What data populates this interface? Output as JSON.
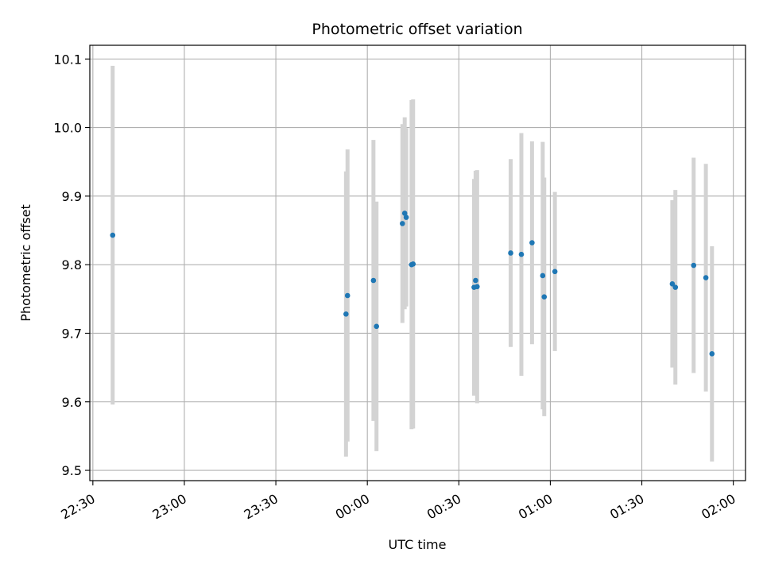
{
  "chart_data": {
    "type": "scatter",
    "title": "Photometric offset variation",
    "xlabel": "UTC time",
    "ylabel": "Photometric offset",
    "x_unit": "UTC time (HH:MM), day boundary at 00:00",
    "x_ticks": [
      "22:30",
      "23:00",
      "23:30",
      "00:00",
      "00:30",
      "01:00",
      "01:30",
      "02:00"
    ],
    "y_ticks": [
      "9.5",
      "9.6",
      "9.7",
      "9.8",
      "9.9",
      "10.0",
      "10.1"
    ],
    "xlim": [
      "22:29",
      "02:04"
    ],
    "ylim": [
      9.485,
      10.12
    ],
    "grid": true,
    "colors": {
      "point": "#1f77b4",
      "errorbar": "#d3d3d3",
      "grid": "#b0b0b0"
    },
    "points": [
      {
        "time": "22:36:30",
        "y": 9.843,
        "err": 0.247
      },
      {
        "time": "23:53:00",
        "y": 9.728,
        "err": 0.208
      },
      {
        "time": "23:53:30",
        "y": 9.755,
        "err": 0.213
      },
      {
        "time": "00:02:00",
        "y": 9.777,
        "err": 0.205
      },
      {
        "time": "00:03:00",
        "y": 9.71,
        "err": 0.182
      },
      {
        "time": "00:11:30",
        "y": 9.86,
        "err": 0.145
      },
      {
        "time": "00:12:15",
        "y": 9.875,
        "err": 0.14
      },
      {
        "time": "00:12:45",
        "y": 9.869,
        "err": 0.13
      },
      {
        "time": "00:14:30",
        "y": 9.8,
        "err": 0.24
      },
      {
        "time": "00:15:00",
        "y": 9.801,
        "err": 0.24
      },
      {
        "time": "00:35:00",
        "y": 9.767,
        "err": 0.158
      },
      {
        "time": "00:35:30",
        "y": 9.777,
        "err": 0.16
      },
      {
        "time": "00:36:00",
        "y": 9.768,
        "err": 0.17
      },
      {
        "time": "00:47:00",
        "y": 9.817,
        "err": 0.137
      },
      {
        "time": "00:50:30",
        "y": 9.815,
        "err": 0.177
      },
      {
        "time": "00:54:00",
        "y": 9.832,
        "err": 0.148
      },
      {
        "time": "00:57:30",
        "y": 9.784,
        "err": 0.195
      },
      {
        "time": "00:58:00",
        "y": 9.753,
        "err": 0.174
      },
      {
        "time": "01:01:30",
        "y": 9.79,
        "err": 0.116
      },
      {
        "time": "01:40:00",
        "y": 9.772,
        "err": 0.122
      },
      {
        "time": "01:41:00",
        "y": 9.767,
        "err": 0.142
      },
      {
        "time": "01:47:00",
        "y": 9.799,
        "err": 0.157
      },
      {
        "time": "01:51:00",
        "y": 9.781,
        "err": 0.166
      },
      {
        "time": "01:53:00",
        "y": 9.67,
        "err": 0.157
      }
    ]
  }
}
